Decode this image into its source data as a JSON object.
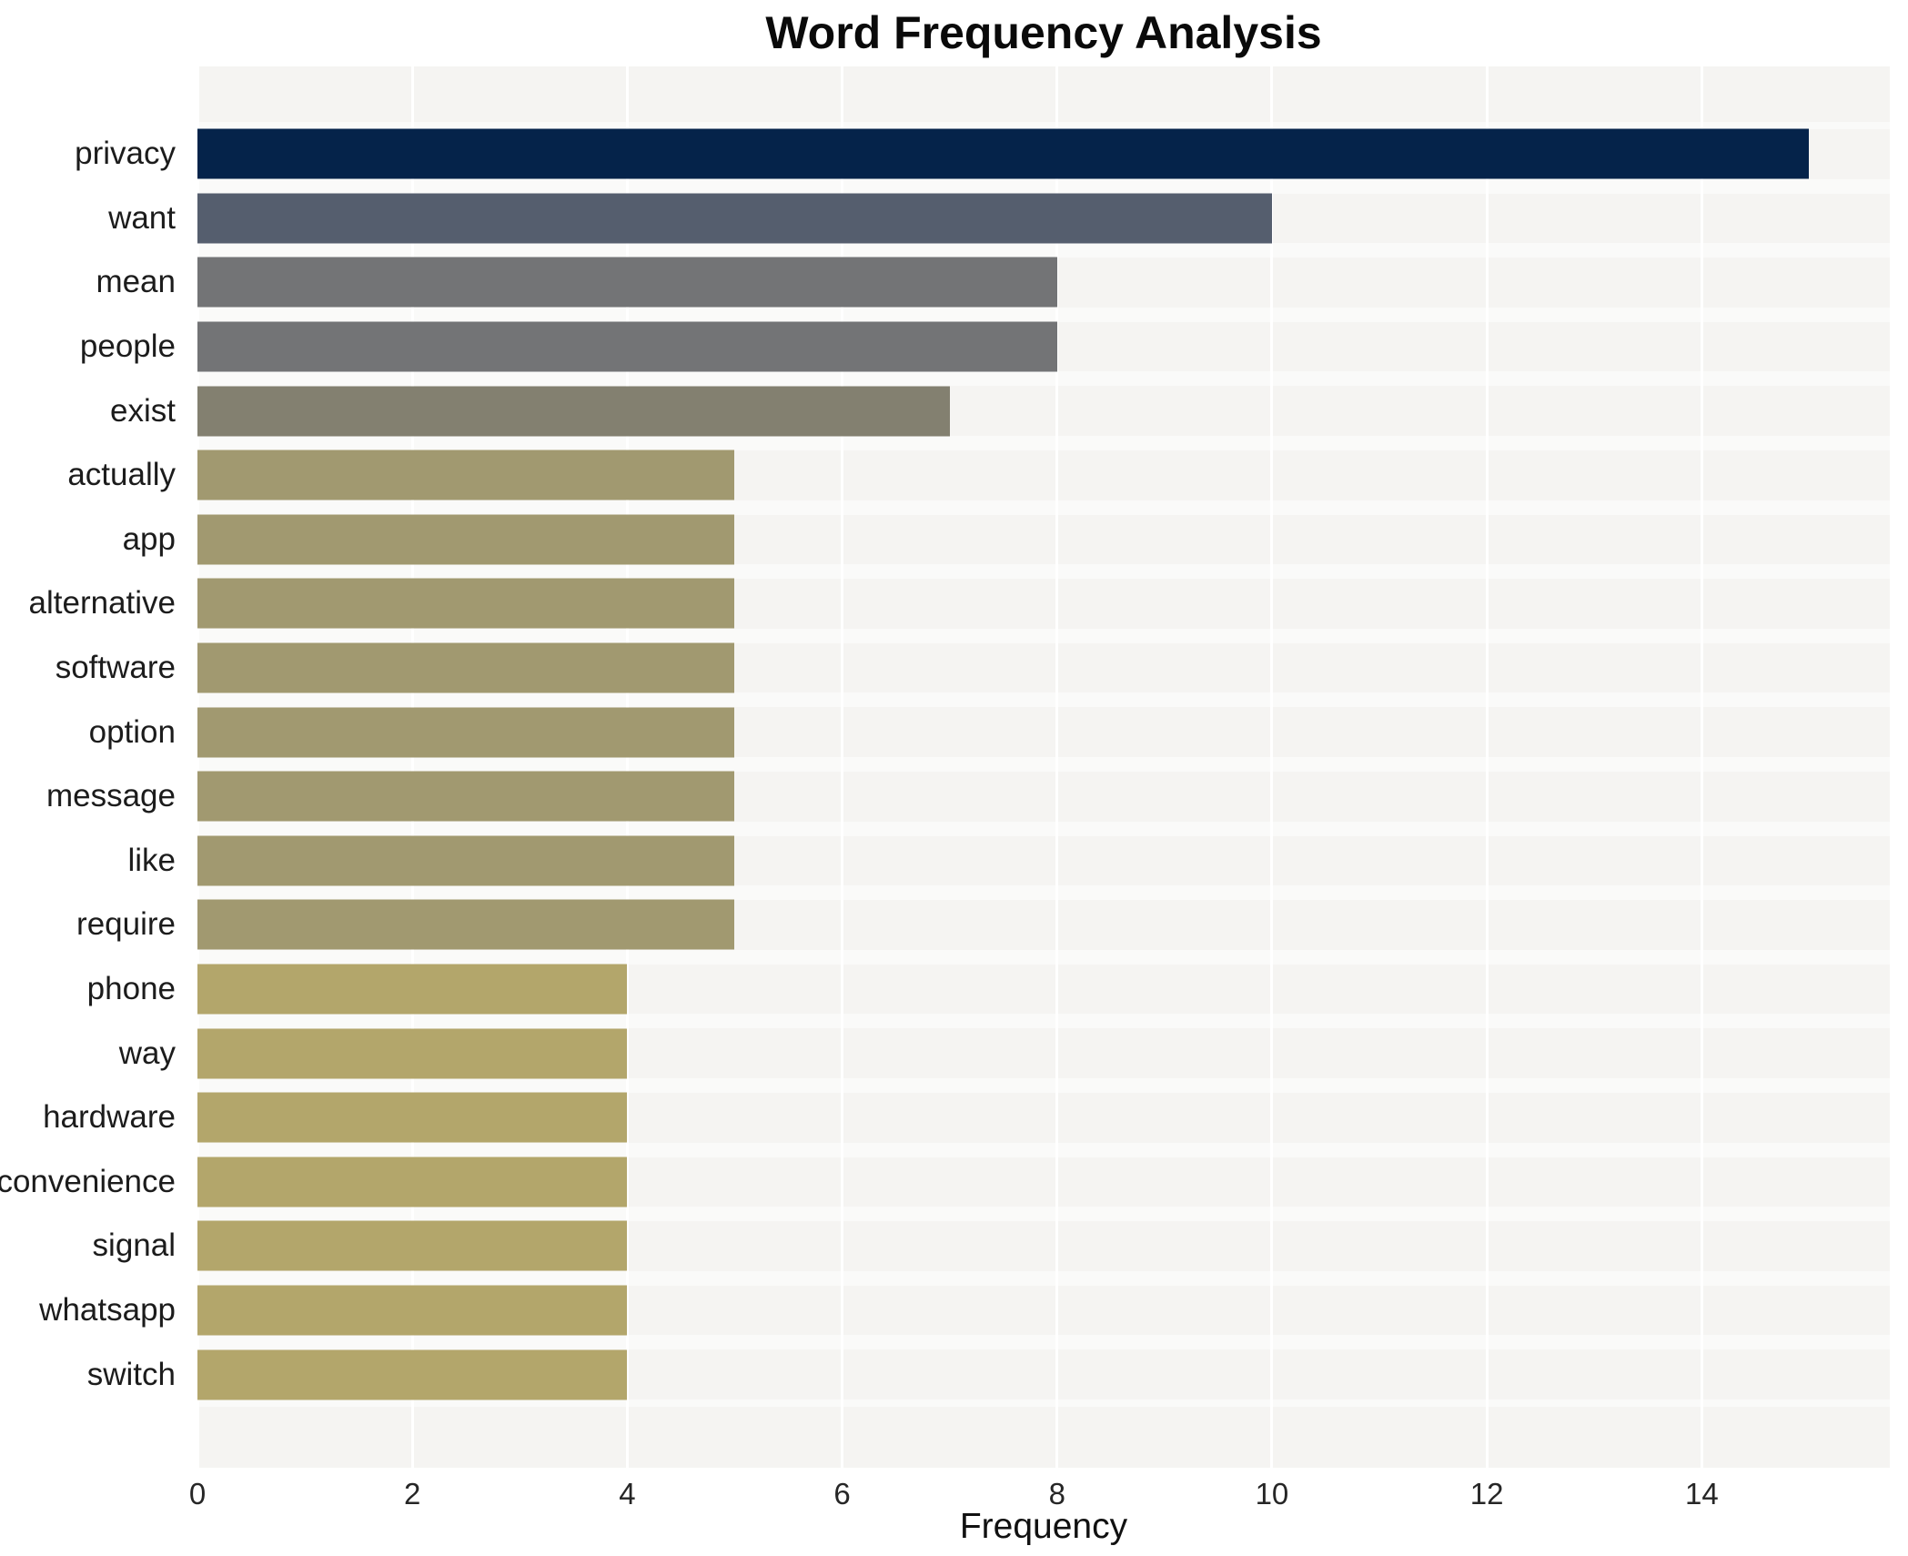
{
  "chart_data": {
    "type": "bar",
    "orientation": "horizontal",
    "title": "Word Frequency Analysis",
    "xlabel": "Frequency",
    "ylabel": "",
    "categories": [
      "privacy",
      "want",
      "mean",
      "people",
      "exist",
      "actually",
      "app",
      "alternative",
      "software",
      "option",
      "message",
      "like",
      "require",
      "phone",
      "way",
      "hardware",
      "convenience",
      "signal",
      "whatsapp",
      "switch"
    ],
    "values": [
      15,
      10,
      8,
      8,
      7,
      5,
      5,
      5,
      5,
      5,
      5,
      5,
      5,
      4,
      4,
      4,
      4,
      4,
      4,
      4
    ],
    "bar_colors": [
      "#05234a",
      "#555e6e",
      "#737476",
      "#737476",
      "#838070",
      "#a19970",
      "#a19970",
      "#a19970",
      "#a19970",
      "#a19970",
      "#a19970",
      "#a19970",
      "#a19970",
      "#b3a66b",
      "#b3a66b",
      "#b3a66b",
      "#b3a66b",
      "#b3a66b",
      "#b3a66b",
      "#b3a66b"
    ],
    "xlim": [
      0,
      15.75
    ],
    "xticks": [
      0,
      2,
      4,
      6,
      8,
      10,
      12,
      14
    ],
    "grid": true,
    "legend": false,
    "colors": {
      "figure_bg": "#ffffff",
      "plot_bg": "#f5f4f2",
      "gridline": "#ffffff",
      "text": "#1c1c1c"
    }
  }
}
